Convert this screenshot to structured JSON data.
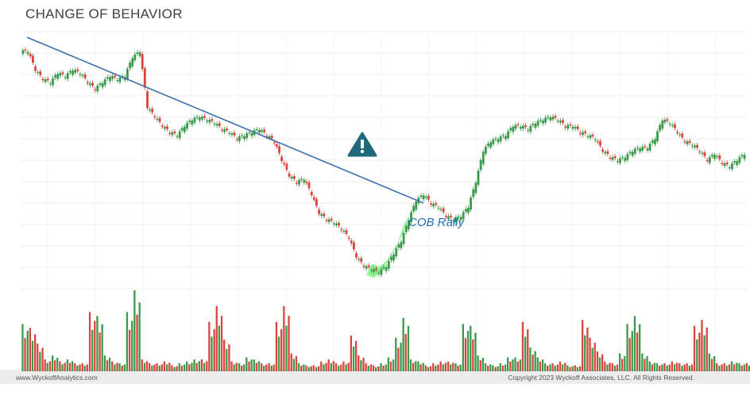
{
  "header": {
    "title": "CHANGE OF BEHAVIOR"
  },
  "annotation": {
    "label": "COB Rally"
  },
  "footer": {
    "left": "www.WyckoffAnalytics.com",
    "right": "Copyright 2023 Wyckoff Associates, LLC. All Rights Reserved."
  },
  "icons": {
    "warning": "warning-icon"
  },
  "colors": {
    "up": "#3a9a4a",
    "down": "#d9453d",
    "trendline": "#3d6fb0",
    "highlight": "#33ee44",
    "warning_fill": "#1e6a7a"
  },
  "chart_data": {
    "type": "candlestick",
    "yaxis": "none",
    "xaxis": "none",
    "grid": true,
    "price": [
      20,
      17,
      15.5,
      15,
      16.5,
      16,
      17,
      16.5,
      15,
      14,
      15,
      16,
      15.5,
      16,
      19,
      20,
      11,
      9.5,
      8,
      7,
      6.5,
      8,
      9,
      9.5,
      9,
      8.5,
      7.5,
      7,
      6,
      6.5,
      7,
      7.5,
      6.5,
      5.5,
      2.5,
      0,
      -1,
      -0.5,
      -3,
      -6,
      -7,
      -7.5,
      -8.5,
      -10,
      -13,
      -14.5,
      -15,
      -15.5,
      -14.5,
      -12.5,
      -10.5,
      -7,
      -4,
      -3,
      -4.5,
      -5,
      -6.5,
      -7,
      -6.5,
      -5,
      -1,
      4,
      5.5,
      6,
      6.5,
      8,
      8,
      7.5,
      8.5,
      9,
      9.5,
      9,
      8,
      8,
      7,
      6.5,
      6,
      4,
      3,
      2.5,
      3,
      4,
      4.5,
      4.5,
      6,
      9,
      8.5,
      7,
      5.5,
      5,
      4,
      2.5,
      3.5,
      2,
      1.5,
      2.5,
      3.5
    ],
    "volume": [
      24,
      22,
      14,
      6,
      8,
      5,
      6,
      4,
      4,
      30,
      28,
      8,
      5,
      4,
      30,
      41,
      6,
      4,
      4,
      5,
      3,
      4,
      5,
      6,
      6,
      25,
      33,
      16,
      5,
      4,
      7,
      6,
      4,
      4,
      25,
      33,
      9,
      4,
      3,
      3,
      5,
      6,
      4,
      5,
      18,
      8,
      4,
      3,
      4,
      7,
      17,
      27,
      6,
      5,
      3,
      4,
      5,
      5,
      4,
      24,
      23,
      8,
      4,
      3,
      4,
      7,
      7,
      25,
      12,
      7,
      4,
      4,
      5,
      3,
      3,
      26,
      17,
      10,
      5,
      4,
      9,
      24,
      28,
      9,
      5,
      4,
      4,
      5,
      4,
      4,
      23,
      26,
      9,
      4,
      4,
      5,
      4,
      4
    ],
    "annotations": [
      "trendline",
      "COB Rally highlight",
      "warning marker"
    ]
  }
}
